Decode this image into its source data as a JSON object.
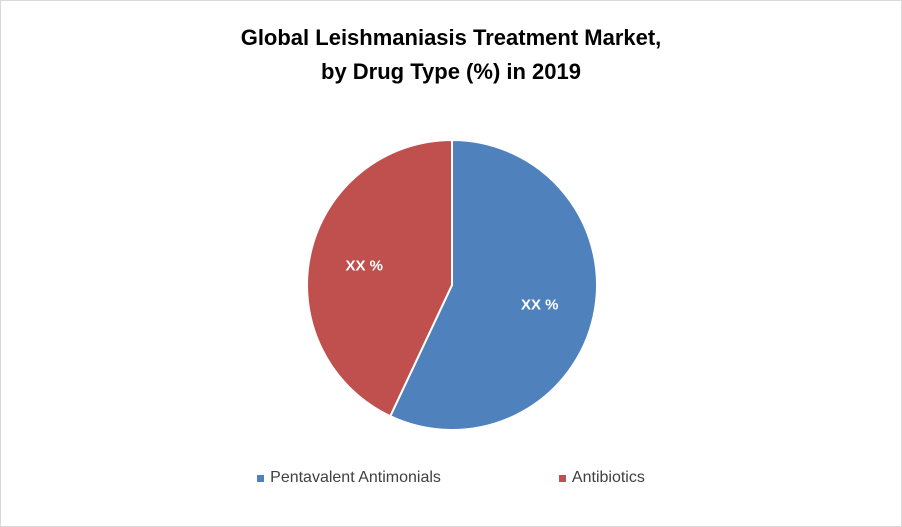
{
  "chart_data": {
    "type": "pie",
    "title": "Global Leishmaniasis Treatment Market,",
    "subtitle": "by Drug Type (%) in 2019",
    "legend_position": "bottom",
    "slices": [
      {
        "label": "Pentavalent Antimonials",
        "value": 57,
        "data_label": "XX %",
        "color": "#4f81bd"
      },
      {
        "label": "Antibiotics",
        "value": 43,
        "data_label": "XX %",
        "color": "#c0504d"
      }
    ]
  }
}
